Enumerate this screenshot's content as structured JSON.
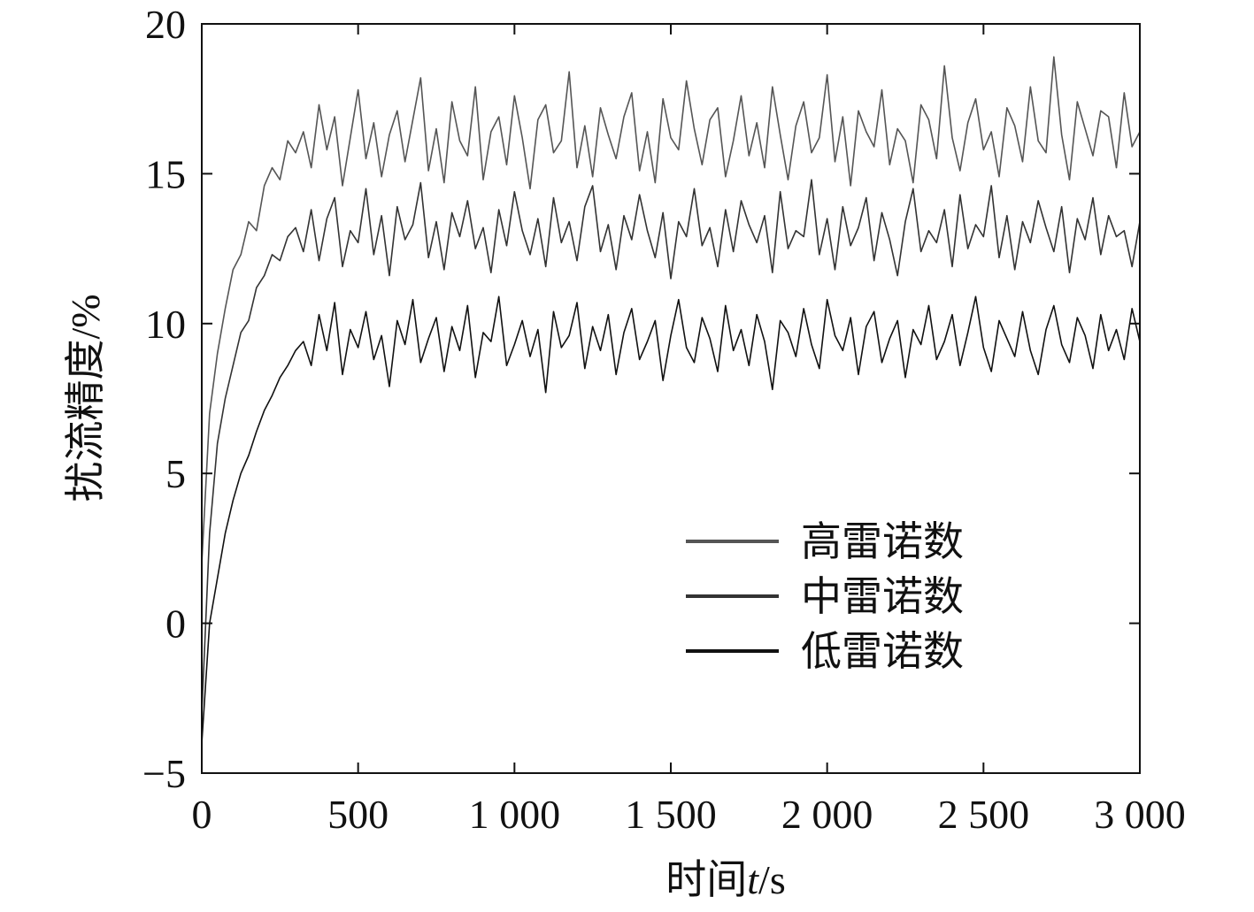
{
  "chart_data": {
    "type": "line",
    "xlabel": [
      "时间",
      "t",
      "/s"
    ],
    "ylabel": "扰流精度/%",
    "x": [
      0,
      25,
      50,
      75,
      100,
      125,
      150,
      175,
      200,
      225,
      250,
      275,
      300,
      325,
      350,
      375,
      400,
      425,
      450,
      475,
      500,
      525,
      550,
      575,
      600,
      625,
      650,
      675,
      700,
      725,
      750,
      775,
      800,
      825,
      850,
      875,
      900,
      925,
      950,
      975,
      1000,
      1025,
      1050,
      1075,
      1100,
      1125,
      1150,
      1175,
      1200,
      1225,
      1250,
      1275,
      1300,
      1325,
      1350,
      1375,
      1400,
      1425,
      1450,
      1475,
      1500,
      1525,
      1550,
      1575,
      1600,
      1625,
      1650,
      1675,
      1700,
      1725,
      1750,
      1775,
      1800,
      1825,
      1850,
      1875,
      1900,
      1925,
      1950,
      1975,
      2000,
      2025,
      2050,
      2075,
      2100,
      2125,
      2150,
      2175,
      2200,
      2225,
      2250,
      2275,
      2300,
      2325,
      2350,
      2375,
      2400,
      2425,
      2450,
      2475,
      2500,
      2525,
      2550,
      2575,
      2600,
      2625,
      2650,
      2675,
      2700,
      2725,
      2750,
      2775,
      2800,
      2825,
      2850,
      2875,
      2900,
      2925,
      2950,
      2975,
      3000
    ],
    "series": [
      {
        "name": "高雷诺数",
        "color": "#555555",
        "values": [
          2,
          7,
          9,
          10.5,
          11.8,
          12.3,
          13.4,
          13.1,
          14.6,
          15.2,
          14.8,
          16.1,
          15.7,
          16.4,
          15.2,
          17.3,
          15.8,
          16.9,
          14.6,
          16.2,
          17.8,
          15.5,
          16.7,
          14.9,
          16.3,
          17.1,
          15.4,
          16.8,
          18.2,
          15.1,
          16.5,
          14.7,
          17.4,
          16.1,
          15.6,
          17.9,
          14.8,
          16.4,
          16.9,
          15.3,
          17.6,
          16.2,
          14.5,
          16.8,
          17.3,
          15.7,
          16.1,
          18.4,
          15.2,
          16.6,
          14.9,
          17.2,
          16.3,
          15.5,
          16.9,
          17.7,
          15.1,
          16.4,
          14.7,
          17.5,
          16.2,
          15.8,
          18.1,
          16.5,
          15.3,
          16.8,
          17.2,
          14.9,
          16.1,
          17.6,
          15.6,
          16.7,
          15.2,
          17.9,
          16.3,
          14.8,
          16.6,
          17.4,
          15.7,
          16.2,
          18.3,
          15.4,
          16.9,
          14.6,
          17.1,
          16.4,
          15.9,
          17.8,
          15.3,
          16.5,
          16.1,
          14.7,
          17.3,
          16.8,
          15.5,
          18.6,
          16.2,
          15.1,
          16.7,
          17.5,
          15.8,
          16.4,
          14.9,
          17.2,
          16.6,
          15.4,
          17.9,
          16.1,
          15.7,
          18.9,
          16.3,
          14.8,
          17.4,
          16.5,
          15.6,
          17.1,
          16.9,
          15.2,
          17.7,
          15.9,
          16.4
        ]
      },
      {
        "name": "中雷诺数",
        "color": "#333333",
        "values": [
          -3,
          3,
          6,
          7.5,
          8.6,
          9.7,
          10.1,
          11.2,
          11.6,
          12.3,
          12.1,
          12.9,
          13.2,
          12.4,
          13.8,
          12.1,
          13.5,
          14.2,
          11.9,
          13.1,
          12.7,
          14.5,
          12.3,
          13.6,
          11.6,
          13.9,
          12.8,
          13.3,
          14.7,
          12.2,
          13.4,
          11.8,
          13.7,
          12.9,
          14.1,
          12.5,
          13.2,
          11.7,
          13.8,
          12.6,
          14.4,
          13.1,
          12.3,
          13.5,
          11.9,
          14.2,
          12.7,
          13.4,
          12.1,
          13.9,
          14.6,
          12.4,
          13.3,
          11.8,
          13.6,
          12.8,
          14.3,
          13.1,
          12.2,
          13.7,
          11.5,
          13.4,
          12.9,
          14.5,
          12.6,
          13.2,
          11.9,
          13.8,
          12.4,
          14.1,
          13.3,
          12.7,
          13.6,
          11.7,
          14.4,
          12.5,
          13.1,
          12.9,
          14.8,
          12.3,
          13.5,
          11.8,
          13.9,
          12.6,
          13.2,
          14.2,
          12.1,
          13.7,
          12.8,
          11.6,
          13.4,
          14.5,
          12.4,
          13.1,
          12.7,
          13.8,
          11.9,
          14.3,
          12.5,
          13.3,
          12.9,
          14.6,
          12.2,
          13.6,
          11.8,
          13.4,
          12.7,
          14.1,
          13.2,
          12.4,
          13.9,
          11.7,
          13.5,
          12.8,
          14.2,
          12.3,
          13.6,
          12.9,
          13.1,
          11.9,
          13.4
        ]
      },
      {
        "name": "低雷诺数",
        "color": "#111111",
        "values": [
          -4,
          0,
          1.5,
          3,
          4.1,
          5,
          5.6,
          6.4,
          7.1,
          7.6,
          8.2,
          8.6,
          9.1,
          9.4,
          8.6,
          10.3,
          9.1,
          10.7,
          8.3,
          9.8,
          9.2,
          10.4,
          8.8,
          9.6,
          7.9,
          10.1,
          9.3,
          10.8,
          8.7,
          9.5,
          10.2,
          8.4,
          9.9,
          9.1,
          10.6,
          8.2,
          9.7,
          9.4,
          10.9,
          8.6,
          9.3,
          10.1,
          8.9,
          9.8,
          7.7,
          10.4,
          9.2,
          9.6,
          10.7,
          8.5,
          9.9,
          9.1,
          10.3,
          8.3,
          9.7,
          10.5,
          8.8,
          9.4,
          10.1,
          8.1,
          9.6,
          10.8,
          9.2,
          8.7,
          10.2,
          9.5,
          8.4,
          10.6,
          9.1,
          9.8,
          8.6,
          10.3,
          9.4,
          7.8,
          10.1,
          9.7,
          8.9,
          10.5,
          9.3,
          8.5,
          10.8,
          9.6,
          9.1,
          10.2,
          8.3,
          9.9,
          10.4,
          8.7,
          9.5,
          10.1,
          8.2,
          9.8,
          9.3,
          10.6,
          8.8,
          9.4,
          10.3,
          8.6,
          9.7,
          10.9,
          9.2,
          8.4,
          10.1,
          9.5,
          8.9,
          10.4,
          9.1,
          8.3,
          9.8,
          10.6,
          9.3,
          8.7,
          10.2,
          9.6,
          8.5,
          10.3,
          9.1,
          9.8,
          8.8,
          10.5,
          9.4
        ]
      }
    ],
    "xlim": [
      0,
      3000
    ],
    "xticks": [
      0,
      500,
      {
        "value": 1000,
        "label": "1 000"
      },
      {
        "value": 1500,
        "label": "1 500"
      },
      {
        "value": 2000,
        "label": "2 000"
      },
      {
        "value": 2500,
        "label": "2 500"
      },
      {
        "value": 3000,
        "label": "3 000"
      }
    ],
    "ylim": [
      -5,
      20
    ],
    "yticks": [
      {
        "value": -5,
        "label": "−5"
      },
      0,
      5,
      10,
      15,
      20
    ],
    "grid": false,
    "legend": "lower right"
  }
}
